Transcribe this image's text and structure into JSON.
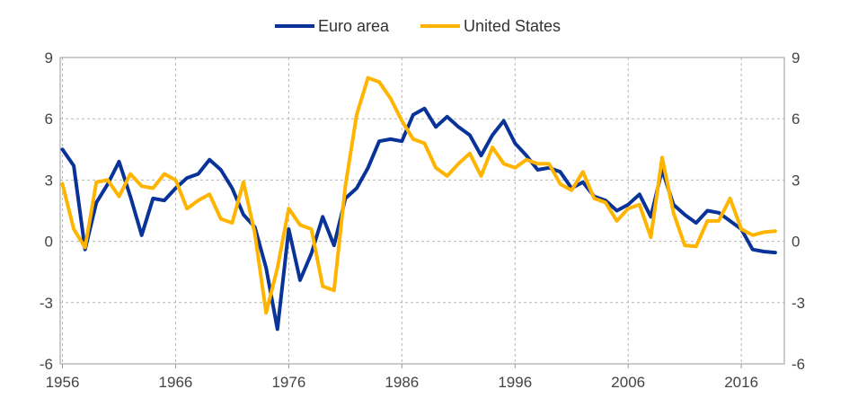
{
  "chart_data": {
    "type": "line",
    "x_ticks": [
      "1956",
      "1966",
      "1976",
      "1986",
      "1996",
      "2006",
      "2016"
    ],
    "y_ticks": [
      "9",
      "6",
      "3",
      "0",
      "-3",
      "-6"
    ],
    "ylim": [
      -6,
      9
    ],
    "xlim": [
      1955.8,
      2019.8
    ],
    "grid": true,
    "legend_position": "top-center",
    "series": [
      {
        "name": "Euro area",
        "color": "#0a3399",
        "x": [
          1956,
          1957,
          1958,
          1959,
          1960,
          1961,
          1962,
          1963,
          1964,
          1965,
          1966,
          1967,
          1968,
          1969,
          1970,
          1971,
          1972,
          1973,
          1974,
          1975,
          1976,
          1977,
          1978,
          1979,
          1980,
          1981,
          1982,
          1983,
          1984,
          1985,
          1986,
          1987,
          1988,
          1989,
          1990,
          1991,
          1992,
          1993,
          1994,
          1995,
          1996,
          1997,
          1998,
          1999,
          2000,
          2001,
          2002,
          2003,
          2004,
          2005,
          2006,
          2007,
          2008,
          2009,
          2010,
          2011,
          2012,
          2013,
          2014,
          2015,
          2016,
          2017,
          2018,
          2019
        ],
        "values": [
          4.5,
          3.7,
          -0.4,
          1.9,
          2.8,
          3.9,
          2.2,
          0.3,
          2.1,
          2.0,
          2.6,
          3.1,
          3.3,
          4.0,
          3.5,
          2.6,
          1.3,
          0.7,
          -1.3,
          -4.3,
          0.6,
          -1.9,
          -0.6,
          1.2,
          -0.2,
          2.1,
          2.6,
          3.6,
          4.9,
          5.0,
          4.9,
          6.2,
          6.5,
          5.6,
          6.1,
          5.6,
          5.2,
          4.2,
          5.2,
          5.9,
          4.8,
          4.2,
          3.5,
          3.6,
          3.4,
          2.6,
          2.9,
          2.2,
          2.0,
          1.5,
          1.8,
          2.3,
          1.2,
          3.5,
          1.8,
          1.3,
          0.9,
          1.5,
          1.4,
          1.0,
          0.6,
          -0.4,
          -0.5,
          -0.55
        ]
      },
      {
        "name": "United States",
        "color": "#ffb400",
        "x": [
          1956,
          1957,
          1958,
          1959,
          1960,
          1961,
          1962,
          1963,
          1964,
          1965,
          1966,
          1967,
          1968,
          1969,
          1970,
          1971,
          1972,
          1973,
          1974,
          1975,
          1976,
          1977,
          1978,
          1979,
          1980,
          1981,
          1982,
          1983,
          1984,
          1985,
          1986,
          1987,
          1988,
          1989,
          1990,
          1991,
          1992,
          1993,
          1994,
          1995,
          1996,
          1997,
          1998,
          1999,
          2000,
          2001,
          2002,
          2003,
          2004,
          2005,
          2006,
          2007,
          2008,
          2009,
          2010,
          2011,
          2012,
          2013,
          2014,
          2015,
          2016,
          2017,
          2018,
          2019
        ],
        "values": [
          2.8,
          0.6,
          -0.3,
          2.9,
          3.0,
          2.2,
          3.3,
          2.7,
          2.6,
          3.3,
          3.0,
          1.6,
          2.0,
          2.3,
          1.1,
          0.9,
          2.9,
          0.4,
          -3.5,
          -1.3,
          1.6,
          0.8,
          0.6,
          -2.2,
          -2.4,
          2.7,
          6.2,
          8.0,
          7.8,
          7.0,
          5.9,
          5.0,
          4.8,
          3.6,
          3.2,
          3.8,
          4.3,
          3.2,
          4.6,
          3.8,
          3.6,
          4.0,
          3.8,
          3.8,
          2.8,
          2.5,
          3.4,
          2.1,
          1.9,
          1.0,
          1.6,
          1.8,
          0.2,
          4.1,
          1.4,
          -0.2,
          -0.25,
          1.0,
          1.0,
          2.1,
          0.6,
          0.3,
          0.45,
          0.5
        ]
      }
    ]
  }
}
